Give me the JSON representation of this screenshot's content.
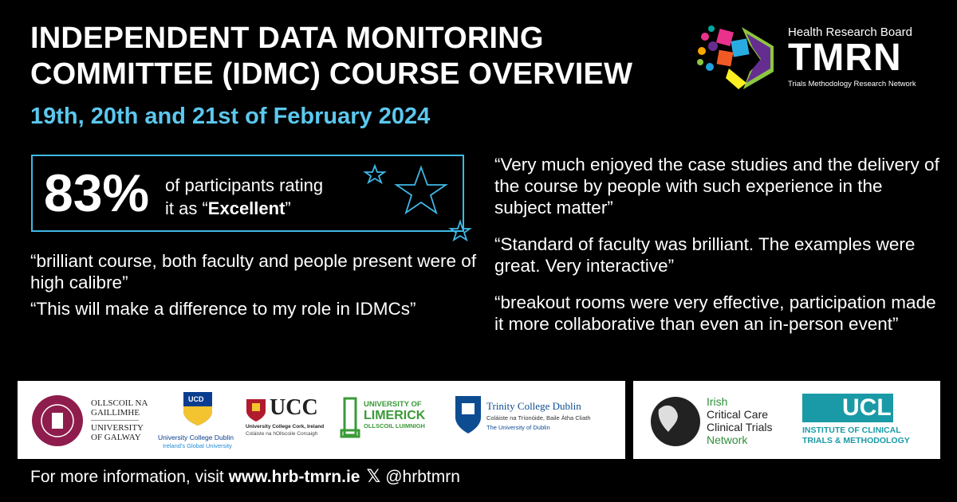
{
  "title": {
    "line1": "INDEPENDENT DATA MONITORING",
    "line2": "COMMITTEE (IDMC) COURSE OVERVIEW"
  },
  "date": "19th, 20th and 21st of February 2024",
  "stat": {
    "value": "83%",
    "text_prefix": "of participants rating",
    "text_line2_prefix": "it as “",
    "emphasis": "Excellent",
    "text_line2_suffix": "”"
  },
  "quotes_left": [
    "“brilliant course, both faculty and people present were of high calibre”",
    "“This will make a difference to my role in IDMCs”"
  ],
  "quotes_right": [
    "“Very much enjoyed the case studies and the delivery of the course by people with such experience in the subject matter”",
    "“Standard of faculty was brilliant. The examples were great. Very interactive”",
    "“breakout rooms were very effective, participation made it more collaborative than even an in-person event”"
  ],
  "brand": {
    "org_name": "Health Research Board",
    "acronym": "TMRN",
    "subtitle": "Trials Methodology Research Network"
  },
  "partner_logos": {
    "galway": {
      "line1": "OLLSCOIL NA",
      "line2": "GAILLIMHE",
      "line3": "UNIVERSITY",
      "line4": "OF GALWAY"
    },
    "ucd": {
      "badge": "UCD",
      "name": "University College Dublin",
      "tagline": "Ireland's Global University"
    },
    "ucc": {
      "acronym": "UCC",
      "name": "University College Cork, Ireland",
      "irish": "Coláiste na hOllscoile Corcaigh"
    },
    "limerick": {
      "line1": "UNIVERSITY OF",
      "line2": "LIMERICK",
      "line3": "OLLSCOIL LUIMNIGH"
    },
    "trinity": {
      "name": "Trinity College Dublin",
      "irish": "Coláiste na Tríonóide, Baile Átha Cliath",
      "sub": "The University of Dublin"
    },
    "iccctn": {
      "line1": "Irish",
      "line2": "Critical Care",
      "line3": "Clinical Trials",
      "line4": "Network"
    },
    "ucl": {
      "acronym": "UCL",
      "line1": "INSTITUTE OF CLINICAL",
      "line2": "TRIALS & METHODOLOGY"
    }
  },
  "footer": {
    "prefix": "For more information, visit ",
    "url": "www.hrb-tmrn.ie",
    "handle": "@hrbtmrn"
  },
  "colors": {
    "background": "#000000",
    "accent": "#5bc8ee",
    "box_border": "#3fb8e6"
  }
}
